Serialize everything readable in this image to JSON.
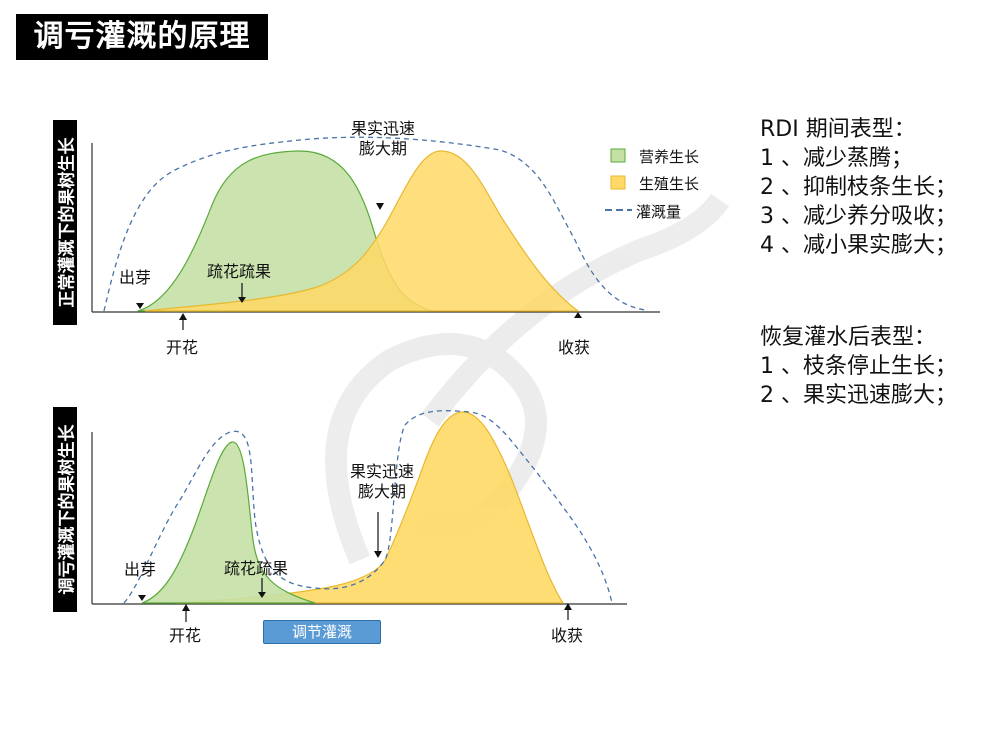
{
  "title": "调亏灌溉的原理",
  "top_panel": {
    "ylabel": "正常灌溉下的果树生长",
    "labels": {
      "sprout": "出芽",
      "thin": "疏花疏果",
      "bloom": "开花",
      "harvest": "收获",
      "fruit_expand_1": "果实迅速",
      "fruit_expand_2": "膨大期"
    }
  },
  "bottom_panel": {
    "ylabel": "调亏灌溉下的果树生长",
    "labels": {
      "sprout": "出芽",
      "thin": "疏花疏果",
      "bloom": "开花",
      "harvest": "收获",
      "fruit_expand_1": "果实迅速",
      "fruit_expand_2": "膨大期"
    },
    "regulate_button": "调节灌溉"
  },
  "legend": {
    "vegetative": "营养生长",
    "reproductive": "生殖生长",
    "irrigation": "灌溉量"
  },
  "colors": {
    "vegetative_fill": "#c5e0a5",
    "vegetative_stroke": "#5aaa3a",
    "reproductive_fill": "#ffd966",
    "reproductive_stroke": "#e8b830",
    "irrigation_line": "#4a73a8",
    "button": "#5b9bd5"
  },
  "rdi_phenotype": {
    "heading": "RDI 期间表型：",
    "items": [
      "1 、减少蒸腾；",
      "2 、抑制枝条生长；",
      "3 、减少养分吸收；",
      "4 、减小果实膨大；"
    ]
  },
  "recovery_phenotype": {
    "heading": "恢复灌水后表型：",
    "items": [
      "1 、枝条停止生长；",
      "2 、果实迅速膨大；"
    ]
  }
}
